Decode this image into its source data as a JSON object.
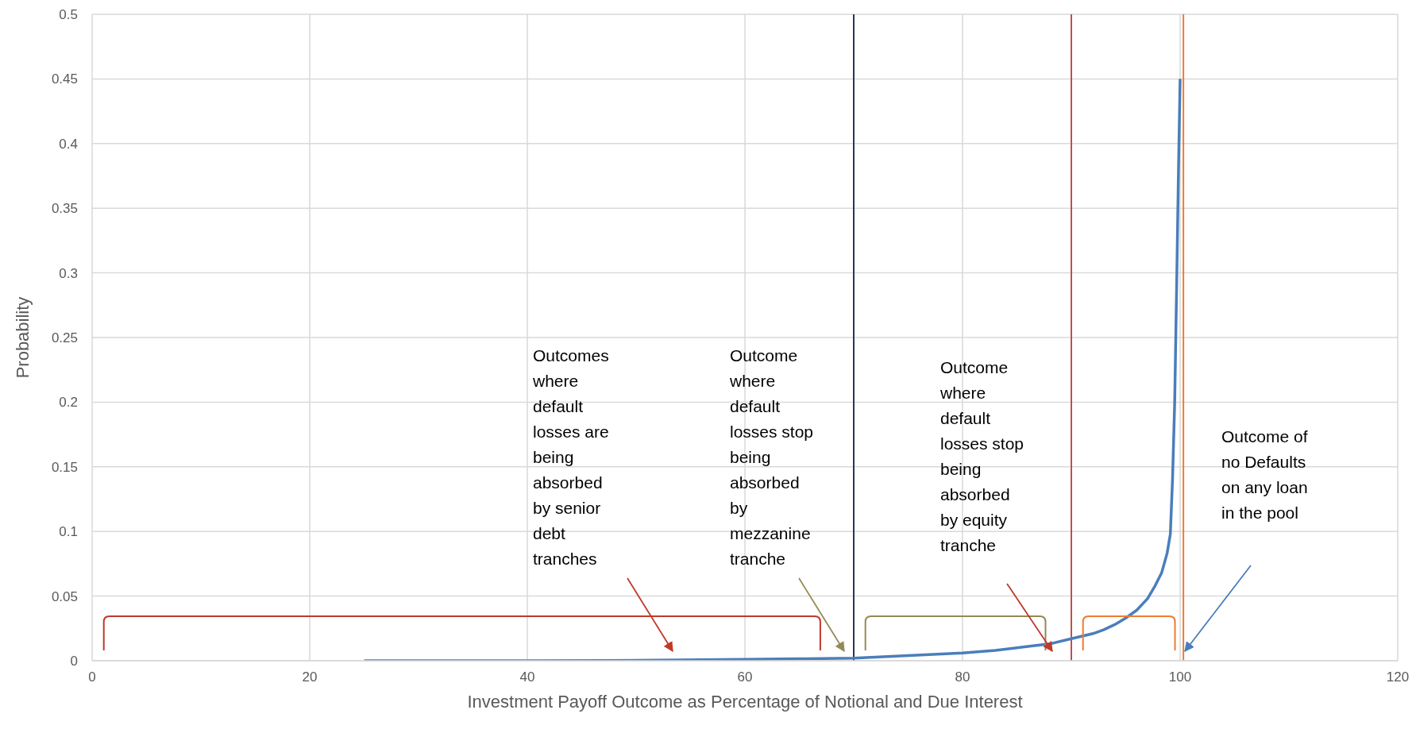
{
  "chart_data": {
    "type": "line",
    "xlabel": "Investment Payoff Outcome as Percentage of Notional and Due Interest",
    "ylabel": "Probability",
    "x": [
      25,
      40,
      50,
      60,
      65,
      70,
      75,
      80,
      83,
      86,
      88,
      90,
      92,
      93,
      94,
      95,
      96,
      97,
      97.7,
      98.3,
      98.8,
      99.1,
      99.3,
      99.5,
      99.7,
      99.85,
      100
    ],
    "series": [
      {
        "color": "#4a7ebb",
        "values": [
          0,
          0,
          0.0003,
          0.001,
          0.0015,
          0.002,
          0.004,
          0.006,
          0.008,
          0.011,
          0.013,
          0.017,
          0.021,
          0.024,
          0.028,
          0.033,
          0.039,
          0.048,
          0.058,
          0.068,
          0.083,
          0.098,
          0.14,
          0.2,
          0.3,
          0.38,
          0.45
        ]
      }
    ],
    "xlim": [
      0,
      120
    ],
    "xticks": [
      0,
      20,
      40,
      60,
      80,
      100,
      120
    ],
    "ylim": [
      0,
      0.5
    ],
    "yticks": [
      0,
      0.05,
      0.1,
      0.15,
      0.2,
      0.25,
      0.3,
      0.35,
      0.4,
      0.45,
      0.5
    ],
    "grid": true,
    "legend": false,
    "marker": "none",
    "line_style": "solid",
    "ref_lines": [
      {
        "axis": "x",
        "value": 70,
        "color": "#1f3864"
      },
      {
        "axis": "x",
        "value": 90,
        "color": "#c0504d"
      },
      {
        "axis": "x",
        "value": 100.3,
        "color": "#ed7d31"
      }
    ],
    "annotations": [
      "Outcomes where default losses are being absorbed by senior debt tranches",
      "Outcome where default losses stop being absorbed by mezzanine tranche",
      "Outcome where default losses stop being absorbed by equity tranche",
      "Outcome of no Defaults on any loan in the pool"
    ]
  }
}
